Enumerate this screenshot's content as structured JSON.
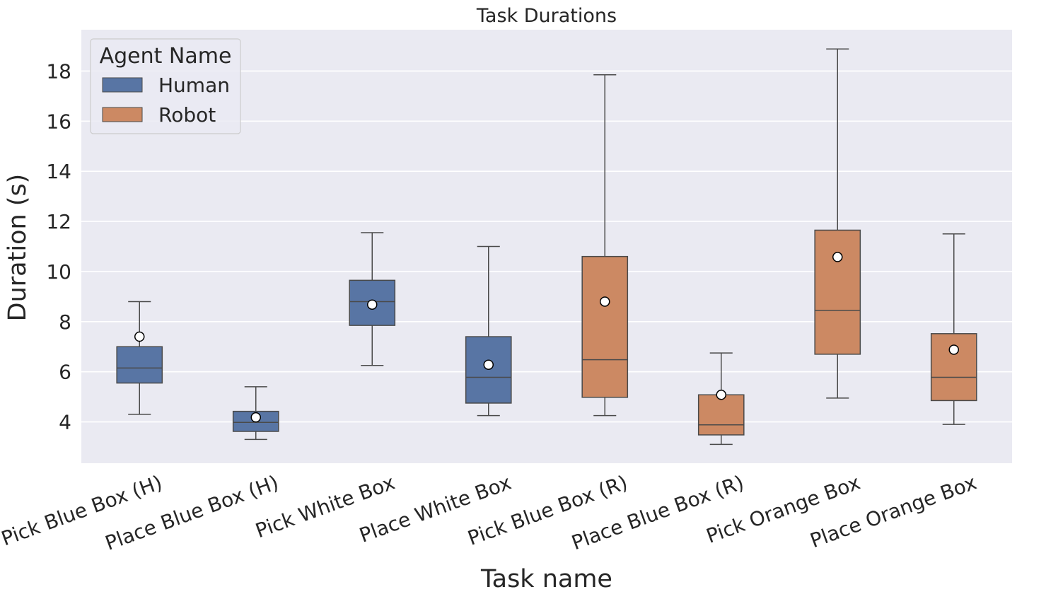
{
  "chart_data": {
    "type": "box",
    "title": "Task Durations",
    "xlabel": "Task name",
    "ylabel": "Duration (s)",
    "ylim": [
      2.35,
      19.65
    ],
    "yticks": [
      4,
      6,
      8,
      10,
      12,
      14,
      16,
      18
    ],
    "grid": true,
    "legend": {
      "title": "Agent Name",
      "position": "top-left",
      "entries": [
        {
          "name": "Human",
          "color": "#5875a4"
        },
        {
          "name": "Robot",
          "color": "#cc8963"
        }
      ]
    },
    "categories": [
      "Pick Blue Box (H)",
      "Place Blue Box (H)",
      "Pick White Box",
      "Place White Box",
      "Pick Blue Box (R)",
      "Place Blue Box (R)",
      "Pick Orange Box",
      "Place Orange Box"
    ],
    "boxes": [
      {
        "task": "Pick Blue Box (H)",
        "agent": "Human",
        "whisker_low": 4.3,
        "q1": 5.55,
        "median": 6.15,
        "q3": 7.0,
        "whisker_high": 8.8,
        "mean": 7.4
      },
      {
        "task": "Place Blue Box (H)",
        "agent": "Human",
        "whisker_low": 3.3,
        "q1": 3.62,
        "median": 3.98,
        "q3": 4.42,
        "whisker_high": 5.4,
        "mean": 4.18
      },
      {
        "task": "Pick White Box",
        "agent": "Human",
        "whisker_low": 6.25,
        "q1": 7.85,
        "median": 8.8,
        "q3": 9.65,
        "whisker_high": 11.55,
        "mean": 8.68
      },
      {
        "task": "Place White Box",
        "agent": "Human",
        "whisker_low": 4.25,
        "q1": 4.75,
        "median": 5.78,
        "q3": 7.4,
        "whisker_high": 11.0,
        "mean": 6.28
      },
      {
        "task": "Pick Blue Box (R)",
        "agent": "Robot",
        "whisker_low": 4.25,
        "q1": 4.98,
        "median": 6.48,
        "q3": 10.6,
        "whisker_high": 17.85,
        "mean": 8.8
      },
      {
        "task": "Place Blue Box (R)",
        "agent": "Robot",
        "whisker_low": 3.1,
        "q1": 3.48,
        "median": 3.88,
        "q3": 5.08,
        "whisker_high": 6.75,
        "mean": 5.08
      },
      {
        "task": "Pick Orange Box",
        "agent": "Robot",
        "whisker_low": 4.95,
        "q1": 6.7,
        "median": 8.45,
        "q3": 11.65,
        "whisker_high": 18.88,
        "mean": 10.58
      },
      {
        "task": "Place Orange Box",
        "agent": "Robot",
        "whisker_low": 3.9,
        "q1": 4.85,
        "median": 5.78,
        "q3": 7.52,
        "whisker_high": 11.5,
        "mean": 6.88
      }
    ]
  }
}
